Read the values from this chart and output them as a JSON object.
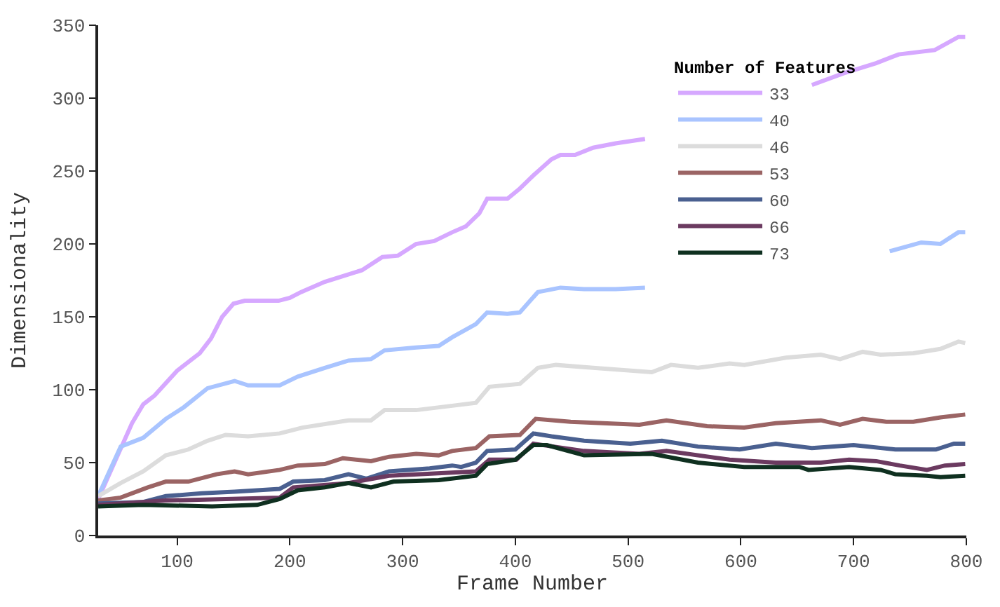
{
  "chart_data": {
    "type": "line",
    "xlabel": "Frame Number",
    "ylabel": "Dimensionality",
    "legend_title": "Number of Features",
    "legend": "top right",
    "line_style": "solid",
    "marker": "none",
    "xlim": [
      30,
      800
    ],
    "xticks": [
      100,
      200,
      300,
      400,
      500,
      600,
      700,
      800
    ],
    "ylim": [
      0,
      350
    ],
    "yticks": [
      0,
      50,
      100,
      150,
      200,
      250,
      300,
      350
    ],
    "series": [
      {
        "name": "33",
        "color": "#d6a8ff",
        "x": [
          30,
          60,
          70,
          80,
          100,
          120,
          130,
          140,
          150,
          160,
          190,
          200,
          210,
          231,
          264,
          282,
          296,
          312,
          328,
          344,
          356,
          368,
          375,
          393,
          404,
          416,
          432,
          440,
          453,
          469,
          489,
          515,
          590,
          663,
          691,
          720,
          740,
          772,
          793,
          799
        ],
        "values": [
          25,
          77,
          90,
          96,
          113,
          125,
          135,
          150,
          159,
          161,
          161,
          163,
          167,
          174,
          182,
          191,
          192,
          200,
          202,
          208,
          212,
          221,
          231,
          231,
          238,
          247,
          258,
          261,
          261,
          266,
          269,
          272,
          null,
          309,
          317,
          324,
          330,
          333,
          342,
          342
        ]
      },
      {
        "name": "40",
        "color": "#a9c4ff",
        "x": [
          30,
          50,
          70,
          90,
          106,
          127,
          151,
          163,
          191,
          207,
          231,
          252,
          272,
          284,
          312,
          332,
          344,
          365,
          375,
          393,
          404,
          420,
          440,
          461,
          489,
          515,
          620,
          732,
          760,
          777,
          793,
          799
        ],
        "values": [
          27,
          61,
          67,
          80,
          88,
          101,
          106,
          103,
          103,
          109,
          115,
          120,
          121,
          127,
          129,
          130,
          136,
          145,
          153,
          152,
          153,
          167,
          170,
          169,
          169,
          170,
          null,
          195,
          201,
          200,
          208,
          208
        ]
      },
      {
        "name": "46",
        "color": "#dcdcdc",
        "x": [
          30,
          50,
          70,
          90,
          110,
          127,
          143,
          163,
          191,
          211,
          252,
          272,
          284,
          312,
          344,
          365,
          377,
          404,
          420,
          436,
          469,
          521,
          538,
          562,
          590,
          603,
          640,
          671,
          688,
          708,
          724,
          753,
          777,
          793,
          799
        ],
        "values": [
          27,
          36,
          44,
          55,
          59,
          65,
          69,
          68,
          70,
          74,
          79,
          79,
          86,
          86,
          89,
          91,
          102,
          104,
          115,
          117,
          115,
          112,
          117,
          115,
          118,
          117,
          122,
          124,
          121,
          126,
          124,
          125,
          128,
          133,
          132
        ]
      },
      {
        "name": "53",
        "color": "#9b6464",
        "x": [
          30,
          50,
          74,
          90,
          110,
          135,
          151,
          163,
          191,
          207,
          231,
          247,
          272,
          288,
          312,
          332,
          344,
          365,
          377,
          404,
          418,
          449,
          510,
          534,
          570,
          603,
          631,
          671,
          688,
          708,
          729,
          753,
          777,
          799
        ],
        "values": [
          24,
          26,
          33,
          37,
          37,
          42,
          44,
          42,
          45,
          48,
          49,
          53,
          51,
          54,
          56,
          55,
          58,
          60,
          68,
          69,
          80,
          78,
          76,
          79,
          75,
          74,
          77,
          79,
          76,
          80,
          78,
          78,
          81,
          83
        ]
      },
      {
        "name": "60",
        "color": "#4a6090",
        "x": [
          30,
          70,
          90,
          122,
          151,
          191,
          203,
          231,
          252,
          268,
          288,
          324,
          344,
          352,
          365,
          375,
          400,
          416,
          432,
          461,
          502,
          530,
          562,
          599,
          631,
          663,
          700,
          737,
          773,
          789,
          799
        ],
        "values": [
          22,
          23,
          27,
          29,
          30,
          32,
          37,
          38,
          42,
          39,
          44,
          46,
          48,
          47,
          50,
          58,
          59,
          70,
          68,
          65,
          63,
          65,
          61,
          59,
          63,
          60,
          62,
          59,
          59,
          63,
          63
        ]
      },
      {
        "name": "66",
        "color": "#6b3a60",
        "x": [
          30,
          90,
          191,
          203,
          252,
          288,
          365,
          377,
          401,
          416,
          461,
          510,
          534,
          590,
          631,
          671,
          696,
          720,
          741,
          765,
          781,
          799
        ],
        "values": [
          21,
          24,
          26,
          33,
          36,
          41,
          44,
          52,
          52,
          63,
          58,
          56,
          58,
          52,
          50,
          50,
          52,
          51,
          48,
          45,
          48,
          49
        ]
      },
      {
        "name": "73",
        "color": "#0f3020",
        "x": [
          30,
          70,
          131,
          171,
          191,
          207,
          231,
          252,
          272,
          292,
          332,
          365,
          375,
          400,
          416,
          428,
          461,
          521,
          562,
          603,
          652,
          660,
          696,
          724,
          737,
          765,
          777,
          799
        ],
        "values": [
          20,
          21,
          20,
          21,
          25,
          31,
          33,
          36,
          33,
          37,
          38,
          41,
          49,
          52,
          62,
          62,
          55,
          56,
          50,
          47,
          47,
          45,
          47,
          45,
          42,
          41,
          40,
          41
        ]
      }
    ]
  }
}
